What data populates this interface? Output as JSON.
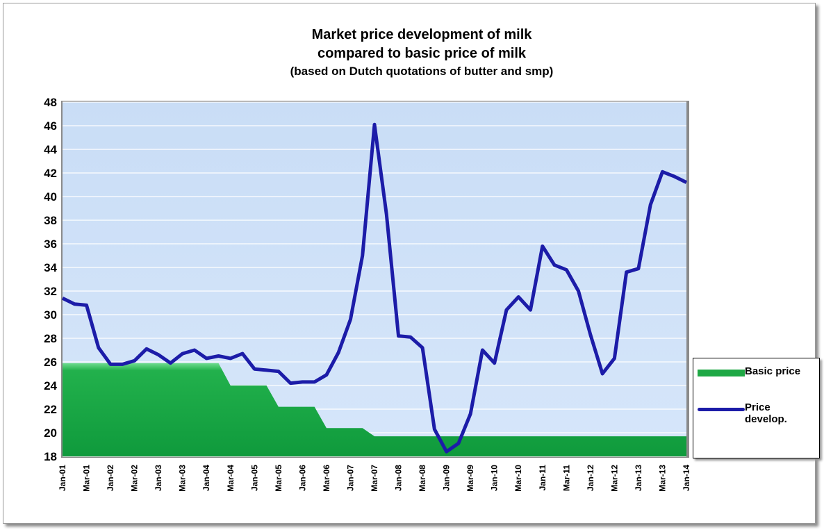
{
  "chart_data": {
    "type": "line",
    "title": [
      "Market price development of milk",
      "compared to basic price of milk"
    ],
    "subtitle": "(based on Dutch quotations of butter and smp)",
    "categories": [
      "Jan-01",
      null,
      "Mar-01",
      null,
      "Jan-02",
      null,
      "Mar-02",
      null,
      "Jan-03",
      null,
      "Mar-03",
      null,
      "Jan-04",
      null,
      "Mar-04",
      null,
      "Jan-05",
      null,
      "Mar-05",
      null,
      "Jan-06",
      null,
      "Mar-06",
      null,
      "Jan-07",
      null,
      "Mar-07",
      null,
      "Jan-08",
      null,
      "Mar-08",
      null,
      "Jan-09",
      null,
      "Mar-09",
      null,
      "Jan-10",
      null,
      "Mar-10",
      null,
      "Jan-11",
      null,
      "Mar-11",
      null,
      "Jan-12",
      null,
      "Mar-12",
      null,
      "Jan-13",
      null,
      "Mar-13",
      null,
      "Jan-14"
    ],
    "series": [
      {
        "name": "Basic price",
        "kind": "area",
        "color": "#1fa845",
        "values": [
          25.9,
          25.9,
          25.9,
          25.9,
          25.9,
          25.9,
          25.9,
          25.9,
          25.9,
          25.9,
          25.9,
          25.9,
          25.9,
          25.9,
          24.0,
          24.0,
          24.0,
          24.0,
          22.2,
          22.2,
          22.2,
          22.2,
          20.4,
          20.4,
          20.4,
          20.4,
          19.7,
          19.7,
          19.7,
          19.7,
          19.7,
          19.7,
          19.7,
          19.7,
          19.7,
          19.7,
          19.7,
          19.7,
          19.7,
          19.7,
          19.7,
          19.7,
          19.7,
          19.7,
          19.7,
          19.7,
          19.7,
          19.7,
          19.7,
          19.7,
          19.7,
          19.7,
          19.7
        ]
      },
      {
        "name": "Price develop.",
        "kind": "line",
        "color": "#1c1ca8",
        "values": [
          31.4,
          30.9,
          30.8,
          27.2,
          25.8,
          25.8,
          26.1,
          27.1,
          26.6,
          25.9,
          26.7,
          27.0,
          26.3,
          26.5,
          26.3,
          26.7,
          25.4,
          25.3,
          25.2,
          24.2,
          24.3,
          24.3,
          24.9,
          26.8,
          29.6,
          35.0,
          46.1,
          38.5,
          28.2,
          28.1,
          27.2,
          20.3,
          18.4,
          19.1,
          21.6,
          27.0,
          25.9,
          30.4,
          31.5,
          30.4,
          35.8,
          34.2,
          33.8,
          32.0,
          28.3,
          25.0,
          26.3,
          33.6,
          33.9,
          39.3,
          42.1,
          41.7,
          41.2
        ]
      }
    ],
    "ylim": [
      18,
      48
    ],
    "yticks": [
      18,
      20,
      22,
      24,
      26,
      28,
      30,
      32,
      34,
      36,
      38,
      40,
      42,
      44,
      46,
      48
    ],
    "grid": true,
    "legend": "right"
  }
}
